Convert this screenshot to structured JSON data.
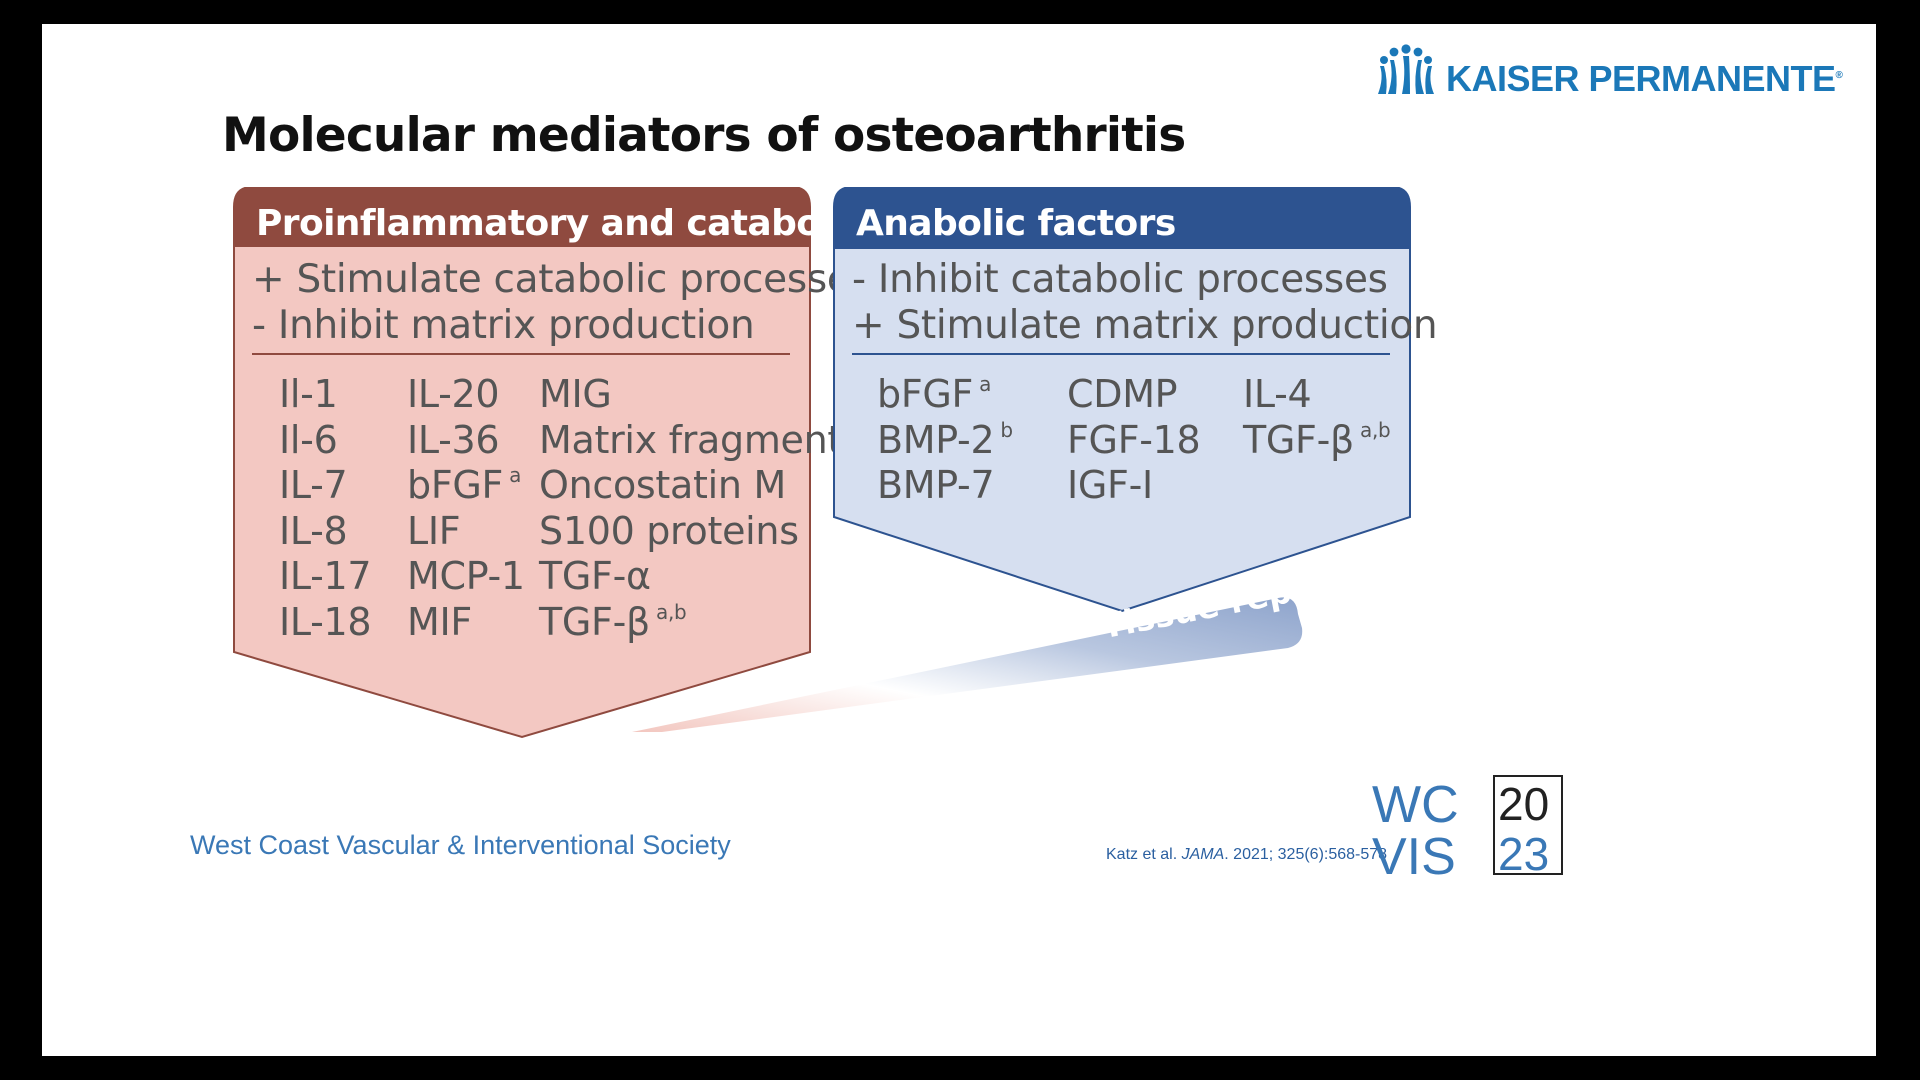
{
  "brand": {
    "name": "KAISER PERMANENTE",
    "registered_mark": "®",
    "color": "#1b78b8"
  },
  "title": "Molecular mediators of osteoarthritis",
  "left_panel": {
    "header": "Proinflammatory and catabolic factors",
    "header_color": "#8f4a3f",
    "body_color": "#f3c8c2",
    "effects": [
      "+ Stimulate catabolic processes",
      "- Inhibit matrix production"
    ],
    "columns": [
      [
        {
          "name": "Il-1",
          "note": ""
        },
        {
          "name": "Il-6",
          "note": ""
        },
        {
          "name": "IL-7",
          "note": ""
        },
        {
          "name": "IL-8",
          "note": ""
        },
        {
          "name": "IL-17",
          "note": ""
        },
        {
          "name": "IL-18",
          "note": ""
        }
      ],
      [
        {
          "name": "IL-20",
          "note": ""
        },
        {
          "name": "IL-36",
          "note": ""
        },
        {
          "name": "bFGF",
          "note": "a"
        },
        {
          "name": "LIF",
          "note": ""
        },
        {
          "name": "MCP-1",
          "note": ""
        },
        {
          "name": "MIF",
          "note": ""
        }
      ],
      [
        {
          "name": "MIG",
          "note": ""
        },
        {
          "name": "Matrix fragments",
          "note": ""
        },
        {
          "name": "Oncostatin M",
          "note": ""
        },
        {
          "name": "S100 proteins",
          "note": ""
        },
        {
          "name": "TGF-α",
          "note": ""
        },
        {
          "name": "TGF-β",
          "note": "a,b"
        }
      ]
    ]
  },
  "right_panel": {
    "header": "Anabolic factors",
    "header_color": "#2d5390",
    "body_color": "#d6dff0",
    "effects": [
      "- Inhibit catabolic processes",
      "+ Stimulate matrix production"
    ],
    "columns": [
      [
        {
          "name": "bFGF",
          "note": "a"
        },
        {
          "name": "BMP-2",
          "note": "b"
        },
        {
          "name": "BMP-7",
          "note": ""
        }
      ],
      [
        {
          "name": "CDMP",
          "note": ""
        },
        {
          "name": "FGF-18",
          "note": ""
        },
        {
          "name": "IGF-I",
          "note": ""
        }
      ],
      [
        {
          "name": "IL-4",
          "note": ""
        },
        {
          "name": "TGF-β",
          "note": "a,b"
        }
      ]
    ]
  },
  "arrow": {
    "label": "Tissue repair"
  },
  "footer": {
    "society": "West Coast Vascular & Interventional Society",
    "citation_authors": "Katz et al.",
    "citation_journal": "JAMA",
    "citation_details": ". 2021; 325(6):568-578",
    "event_logo": {
      "letters_top": "WC",
      "letters_bottom": "VIS",
      "year_top": "20",
      "year_bottom": "23",
      "color": "#3a78b6"
    }
  }
}
